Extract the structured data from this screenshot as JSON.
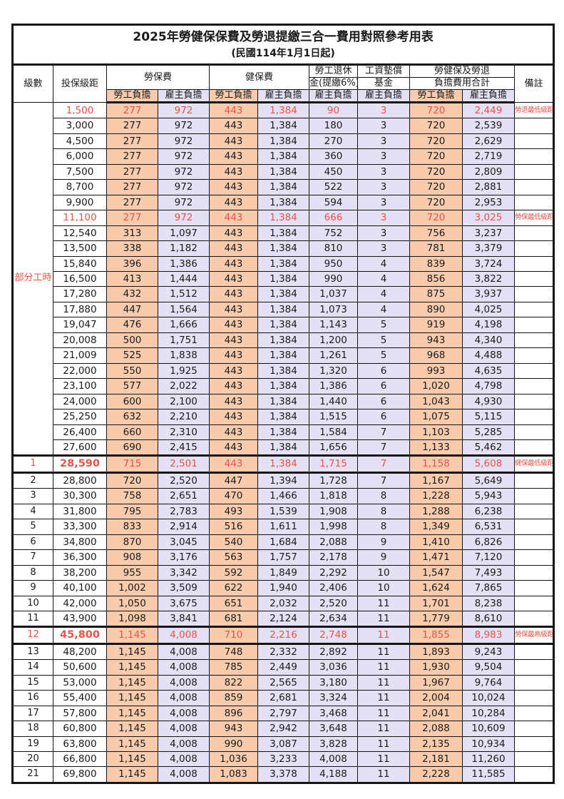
{
  "title": "2025年勞健保保費及勞退提繳三合一費用對照參考用表",
  "subtitle": "(民國114年1月1日起)",
  "columns": {
    "level": "級數",
    "bracket": "投保級距",
    "labor_ins": "勞保費",
    "health_ins": "健保費",
    "pension_line1": "勞工退休",
    "pension_line2": "金(提繳6%)",
    "wage_fund_line1": "工資墊償",
    "wage_fund_line2": "基金",
    "total_line1": "勞健保及勞退",
    "total_line2": "負擔費用合計",
    "note": "備註",
    "employee": "勞工負擔",
    "employer": "雇主負擔"
  },
  "part_time_label": "部分工時",
  "part_time_rowspan": 23,
  "colors": {
    "employee_bg": "#F8CBAD",
    "employer_bg": "#E3E1F3",
    "highlight_text": "#E8534B",
    "note_text": "#FC3D36",
    "border": "#141414"
  },
  "rows": [
    {
      "level": null,
      "bracket": "1,500",
      "cells": [
        "277",
        "972",
        "443",
        "1,384",
        "90",
        "3",
        "720",
        "2,449"
      ],
      "note": "勞退最低級距",
      "red": true
    },
    {
      "level": null,
      "bracket": "3,000",
      "cells": [
        "277",
        "972",
        "443",
        "1,384",
        "180",
        "3",
        "720",
        "2,539"
      ],
      "note": ""
    },
    {
      "level": null,
      "bracket": "4,500",
      "cells": [
        "277",
        "972",
        "443",
        "1,384",
        "270",
        "3",
        "720",
        "2,629"
      ],
      "note": ""
    },
    {
      "level": null,
      "bracket": "6,000",
      "cells": [
        "277",
        "972",
        "443",
        "1,384",
        "360",
        "3",
        "720",
        "2,719"
      ],
      "note": ""
    },
    {
      "level": null,
      "bracket": "7,500",
      "cells": [
        "277",
        "972",
        "443",
        "1,384",
        "450",
        "3",
        "720",
        "2,809"
      ],
      "note": ""
    },
    {
      "level": null,
      "bracket": "8,700",
      "cells": [
        "277",
        "972",
        "443",
        "1,384",
        "522",
        "3",
        "720",
        "2,881"
      ],
      "note": ""
    },
    {
      "level": null,
      "bracket": "9,900",
      "cells": [
        "277",
        "972",
        "443",
        "1,384",
        "594",
        "3",
        "720",
        "2,953"
      ],
      "note": ""
    },
    {
      "level": null,
      "bracket": "11,100",
      "cells": [
        "277",
        "972",
        "443",
        "1,384",
        "666",
        "3",
        "720",
        "3,025"
      ],
      "note": "勞保最低級距",
      "red": true
    },
    {
      "level": null,
      "bracket": "12,540",
      "cells": [
        "313",
        "1,097",
        "443",
        "1,384",
        "752",
        "3",
        "756",
        "3,237"
      ],
      "note": ""
    },
    {
      "level": null,
      "bracket": "13,500",
      "cells": [
        "338",
        "1,182",
        "443",
        "1,384",
        "810",
        "3",
        "781",
        "3,379"
      ],
      "note": ""
    },
    {
      "level": null,
      "bracket": "15,840",
      "cells": [
        "396",
        "1,386",
        "443",
        "1,384",
        "950",
        "4",
        "839",
        "3,724"
      ],
      "note": ""
    },
    {
      "level": null,
      "bracket": "16,500",
      "cells": [
        "413",
        "1,444",
        "443",
        "1,384",
        "990",
        "4",
        "856",
        "3,822"
      ],
      "note": ""
    },
    {
      "level": null,
      "bracket": "17,280",
      "cells": [
        "432",
        "1,512",
        "443",
        "1,384",
        "1,037",
        "4",
        "875",
        "3,937"
      ],
      "note": ""
    },
    {
      "level": null,
      "bracket": "17,880",
      "cells": [
        "447",
        "1,564",
        "443",
        "1,384",
        "1,073",
        "4",
        "890",
        "4,025"
      ],
      "note": ""
    },
    {
      "level": null,
      "bracket": "19,047",
      "cells": [
        "476",
        "1,666",
        "443",
        "1,384",
        "1,143",
        "5",
        "919",
        "4,198"
      ],
      "note": ""
    },
    {
      "level": null,
      "bracket": "20,008",
      "cells": [
        "500",
        "1,751",
        "443",
        "1,384",
        "1,200",
        "5",
        "943",
        "4,340"
      ],
      "note": ""
    },
    {
      "level": null,
      "bracket": "21,009",
      "cells": [
        "525",
        "1,838",
        "443",
        "1,384",
        "1,261",
        "5",
        "968",
        "4,488"
      ],
      "note": ""
    },
    {
      "level": null,
      "bracket": "22,000",
      "cells": [
        "550",
        "1,925",
        "443",
        "1,384",
        "1,320",
        "6",
        "993",
        "4,635"
      ],
      "note": ""
    },
    {
      "level": null,
      "bracket": "23,100",
      "cells": [
        "577",
        "2,022",
        "443",
        "1,384",
        "1,386",
        "6",
        "1,020",
        "4,798"
      ],
      "note": ""
    },
    {
      "level": null,
      "bracket": "24,000",
      "cells": [
        "600",
        "2,100",
        "443",
        "1,384",
        "1,440",
        "6",
        "1,043",
        "4,930"
      ],
      "note": ""
    },
    {
      "level": null,
      "bracket": "25,250",
      "cells": [
        "632",
        "2,210",
        "443",
        "1,384",
        "1,515",
        "6",
        "1,075",
        "5,115"
      ],
      "note": ""
    },
    {
      "level": null,
      "bracket": "26,400",
      "cells": [
        "660",
        "2,310",
        "443",
        "1,384",
        "1,584",
        "7",
        "1,103",
        "5,285"
      ],
      "note": ""
    },
    {
      "level": null,
      "bracket": "27,600",
      "cells": [
        "690",
        "2,415",
        "443",
        "1,384",
        "1,656",
        "7",
        "1,133",
        "5,462"
      ],
      "note": ""
    },
    {
      "level": "1",
      "bracket": "28,590",
      "cells": [
        "715",
        "2,501",
        "443",
        "1,384",
        "1,715",
        "7",
        "1,158",
        "5,608"
      ],
      "note": "健保最低級距",
      "red": true,
      "thick": true,
      "bold": true
    },
    {
      "level": "2",
      "bracket": "28,800",
      "cells": [
        "720",
        "2,520",
        "447",
        "1,394",
        "1,728",
        "7",
        "1,167",
        "5,649"
      ],
      "note": ""
    },
    {
      "level": "3",
      "bracket": "30,300",
      "cells": [
        "758",
        "2,651",
        "470",
        "1,466",
        "1,818",
        "8",
        "1,228",
        "5,943"
      ],
      "note": ""
    },
    {
      "level": "4",
      "bracket": "31,800",
      "cells": [
        "795",
        "2,783",
        "493",
        "1,539",
        "1,908",
        "8",
        "1,288",
        "6,238"
      ],
      "note": ""
    },
    {
      "level": "5",
      "bracket": "33,300",
      "cells": [
        "833",
        "2,914",
        "516",
        "1,611",
        "1,998",
        "8",
        "1,349",
        "6,531"
      ],
      "note": ""
    },
    {
      "level": "6",
      "bracket": "34,800",
      "cells": [
        "870",
        "3,045",
        "540",
        "1,684",
        "2,088",
        "9",
        "1,410",
        "6,826"
      ],
      "note": ""
    },
    {
      "level": "7",
      "bracket": "36,300",
      "cells": [
        "908",
        "3,176",
        "563",
        "1,757",
        "2,178",
        "9",
        "1,471",
        "7,120"
      ],
      "note": ""
    },
    {
      "level": "8",
      "bracket": "38,200",
      "cells": [
        "955",
        "3,342",
        "592",
        "1,849",
        "2,292",
        "10",
        "1,547",
        "7,493"
      ],
      "note": ""
    },
    {
      "level": "9",
      "bracket": "40,100",
      "cells": [
        "1,002",
        "3,509",
        "622",
        "1,940",
        "2,406",
        "10",
        "1,624",
        "7,865"
      ],
      "note": ""
    },
    {
      "level": "10",
      "bracket": "42,000",
      "cells": [
        "1,050",
        "3,675",
        "651",
        "2,032",
        "2,520",
        "11",
        "1,701",
        "8,238"
      ],
      "note": ""
    },
    {
      "level": "11",
      "bracket": "43,900",
      "cells": [
        "1,098",
        "3,841",
        "681",
        "2,124",
        "2,634",
        "11",
        "1,779",
        "8,610"
      ],
      "note": ""
    },
    {
      "level": "12",
      "bracket": "45,800",
      "cells": [
        "1,145",
        "4,008",
        "710",
        "2,216",
        "2,748",
        "11",
        "1,855",
        "8,983"
      ],
      "note": "勞保最高級距",
      "red": true,
      "thick": true,
      "bold": true
    },
    {
      "level": "13",
      "bracket": "48,200",
      "cells": [
        "1,145",
        "4,008",
        "748",
        "2,332",
        "2,892",
        "11",
        "1,893",
        "9,243"
      ],
      "note": ""
    },
    {
      "level": "14",
      "bracket": "50,600",
      "cells": [
        "1,145",
        "4,008",
        "785",
        "2,449",
        "3,036",
        "11",
        "1,930",
        "9,504"
      ],
      "note": ""
    },
    {
      "level": "15",
      "bracket": "53,000",
      "cells": [
        "1,145",
        "4,008",
        "822",
        "2,565",
        "3,180",
        "11",
        "1,967",
        "9,764"
      ],
      "note": ""
    },
    {
      "level": "16",
      "bracket": "55,400",
      "cells": [
        "1,145",
        "4,008",
        "859",
        "2,681",
        "3,324",
        "11",
        "2,004",
        "10,024"
      ],
      "note": ""
    },
    {
      "level": "17",
      "bracket": "57,800",
      "cells": [
        "1,145",
        "4,008",
        "896",
        "2,797",
        "3,468",
        "11",
        "2,041",
        "10,284"
      ],
      "note": ""
    },
    {
      "level": "18",
      "bracket": "60,800",
      "cells": [
        "1,145",
        "4,008",
        "943",
        "2,942",
        "3,648",
        "11",
        "2,088",
        "10,609"
      ],
      "note": ""
    },
    {
      "level": "19",
      "bracket": "63,800",
      "cells": [
        "1,145",
        "4,008",
        "990",
        "3,087",
        "3,828",
        "11",
        "2,135",
        "10,934"
      ],
      "note": ""
    },
    {
      "level": "20",
      "bracket": "66,800",
      "cells": [
        "1,145",
        "4,008",
        "1,036",
        "3,233",
        "4,008",
        "11",
        "2,181",
        "11,260"
      ],
      "note": ""
    },
    {
      "level": "21",
      "bracket": "69,800",
      "cells": [
        "1,145",
        "4,008",
        "1,083",
        "3,378",
        "4,188",
        "11",
        "2,228",
        "11,585"
      ],
      "note": ""
    }
  ]
}
